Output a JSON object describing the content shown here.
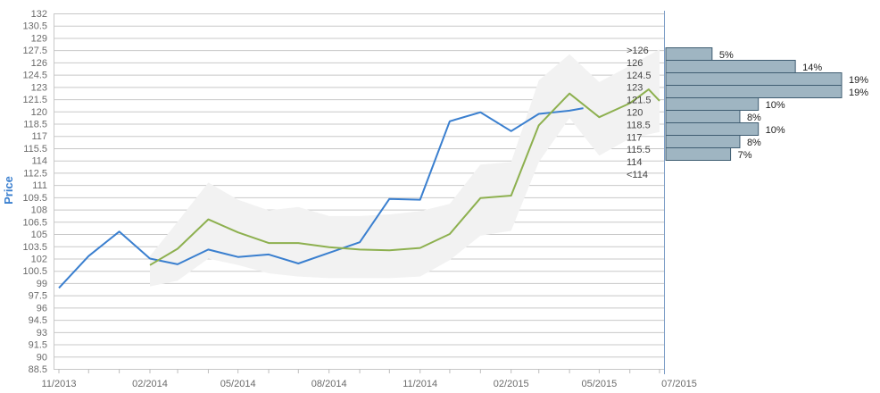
{
  "chart_data": {
    "type": "line",
    "ylabel": "Price",
    "ylim": [
      88.5,
      132
    ],
    "y_ticks": [
      "132",
      "130.5",
      "129",
      "127.5",
      "126",
      "124.5",
      "123",
      "121.5",
      "120",
      "118.5",
      "117",
      "115.5",
      "114",
      "112.5",
      "111",
      "109.5",
      "108",
      "106.5",
      "105",
      "103.5",
      "102",
      "100.5",
      "99",
      "97.5",
      "96",
      "94.5",
      "93",
      "91.5",
      "90",
      "88.5"
    ],
    "x_ticks": [
      "11/2013",
      "02/2014",
      "05/2014",
      "08/2014",
      "11/2014",
      "02/2015",
      "05/2015",
      "07/2015"
    ],
    "grid": true,
    "series": [
      {
        "role": "actual",
        "color": "#3a7fcf",
        "x": [
          "2013-11-01",
          "2013-12-01",
          "2014-01-01",
          "2014-02-01",
          "2014-03-01",
          "2014-04-01",
          "2014-05-01",
          "2014-06-01",
          "2014-07-01",
          "2014-08-01",
          "2014-09-01",
          "2014-10-01",
          "2014-11-01",
          "2014-12-01",
          "2015-01-01",
          "2015-02-01",
          "2015-03-01",
          "2015-04-01",
          "2015-04-15"
        ],
        "values": [
          98.4,
          102.3,
          105.3,
          102.0,
          101.3,
          103.1,
          102.2,
          102.5,
          101.4,
          102.7,
          104.0,
          109.3,
          109.2,
          118.8,
          119.9,
          117.6,
          119.7,
          120.1,
          120.4
        ]
      },
      {
        "role": "average estimate",
        "color": "#8db04f",
        "x": [
          "2014-02-01",
          "2014-03-01",
          "2014-04-01",
          "2014-05-01",
          "2014-06-01",
          "2014-07-01",
          "2014-08-01",
          "2014-09-01",
          "2014-10-01",
          "2014-11-01",
          "2014-12-01",
          "2015-01-01",
          "2015-02-01",
          "2015-03-01",
          "2015-04-01",
          "2015-05-01",
          "2015-06-01",
          "2015-06-20",
          "2015-07-01"
        ],
        "values": [
          101.2,
          103.2,
          106.8,
          105.2,
          103.9,
          103.9,
          103.4,
          103.1,
          103.0,
          103.3,
          105.0,
          109.4,
          109.7,
          118.3,
          122.2,
          119.3,
          121.0,
          122.7,
          121.3
        ]
      }
    ],
    "estimate_range": {
      "color": "#f2f2f2",
      "x": [
        "2014-02-01",
        "2014-03-01",
        "2014-04-01",
        "2014-05-01",
        "2014-06-01",
        "2014-07-01",
        "2014-08-01",
        "2014-09-01",
        "2014-10-01",
        "2014-11-01",
        "2014-12-01",
        "2015-01-01",
        "2015-02-01",
        "2015-03-01",
        "2015-04-01",
        "2015-05-01",
        "2015-06-01",
        "2015-07-01"
      ],
      "low": [
        98.6,
        99.3,
        102.0,
        101.2,
        100.2,
        99.8,
        99.6,
        99.6,
        99.6,
        99.8,
        101.8,
        104.8,
        105.4,
        113.8,
        119.2,
        114.6,
        116.7,
        117.5
      ],
      "high": [
        102.3,
        106.5,
        111.3,
        109.2,
        107.9,
        108.3,
        107.2,
        107.2,
        107.4,
        107.8,
        108.7,
        113.5,
        113.8,
        123.8,
        127.0,
        123.6,
        125.6,
        127.6
      ]
    },
    "histogram": {
      "color": "#9fb5c2",
      "bins": [
        {
          "label": ">126",
          "percent": "5%",
          "value": 5
        },
        {
          "label": "126",
          "percent": "14%",
          "value": 14
        },
        {
          "label": "124.5",
          "percent": "19%",
          "value": 19
        },
        {
          "label": "123",
          "percent": "19%",
          "value": 19
        },
        {
          "label": "121.5",
          "percent": "10%",
          "value": 10
        },
        {
          "label": "120",
          "percent": "8%",
          "value": 8
        },
        {
          "label": "118.5",
          "percent": "10%",
          "value": 10
        },
        {
          "label": "117",
          "percent": "8%",
          "value": 8
        },
        {
          "label": "115.5",
          "percent": "7%",
          "value": 7
        },
        {
          "label": "114",
          "percent": "",
          "value": 0
        },
        {
          "label": "<114",
          "percent": "",
          "value": 0
        }
      ]
    }
  }
}
